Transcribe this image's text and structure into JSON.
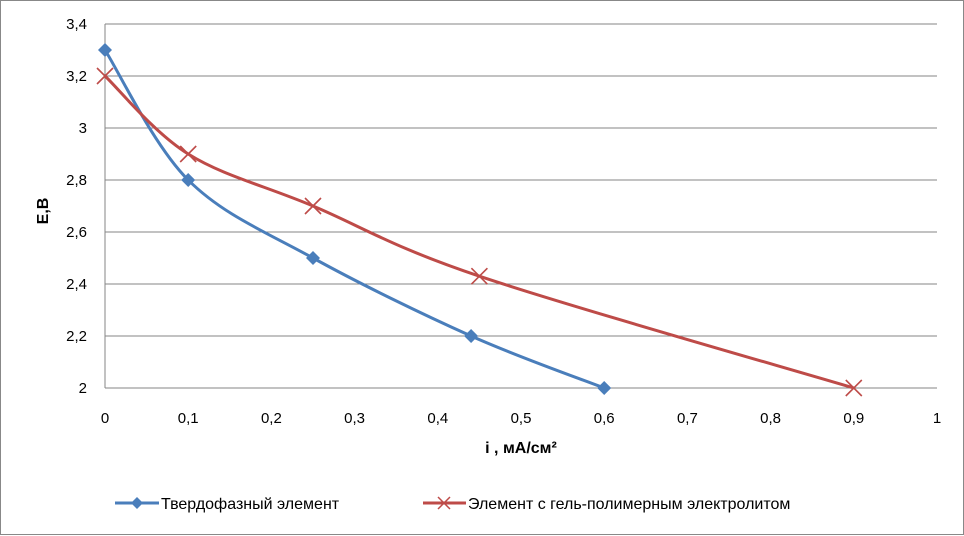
{
  "chart_data": {
    "type": "line",
    "title": "",
    "xlabel": "i , мА/см²",
    "ylabel": "E,B",
    "xlim": [
      0,
      1
    ],
    "ylim": [
      2,
      3.4
    ],
    "x_ticks": [
      "0",
      "0,1",
      "0,2",
      "0,3",
      "0,4",
      "0,5",
      "0,6",
      "0,7",
      "0,8",
      "0,9",
      "1"
    ],
    "y_ticks": [
      "2",
      "2,2",
      "2,4",
      "2,6",
      "2,8",
      "3",
      "3,2",
      "3,4"
    ],
    "grid": "horizontal",
    "legend_position": "bottom",
    "series": [
      {
        "name": "Твердофазный элемент",
        "color": "#4a7ebb",
        "marker": "diamond",
        "x": [
          0,
          0.1,
          0.25,
          0.44,
          0.6
        ],
        "y": [
          3.3,
          2.8,
          2.5,
          2.2,
          2.0
        ]
      },
      {
        "name": "Элемент с гель-полимерным электролитом",
        "color": "#be4b48",
        "marker": "x",
        "x": [
          0,
          0.1,
          0.25,
          0.45,
          0.9
        ],
        "y": [
          3.2,
          2.9,
          2.7,
          2.43,
          2.0
        ]
      }
    ]
  }
}
